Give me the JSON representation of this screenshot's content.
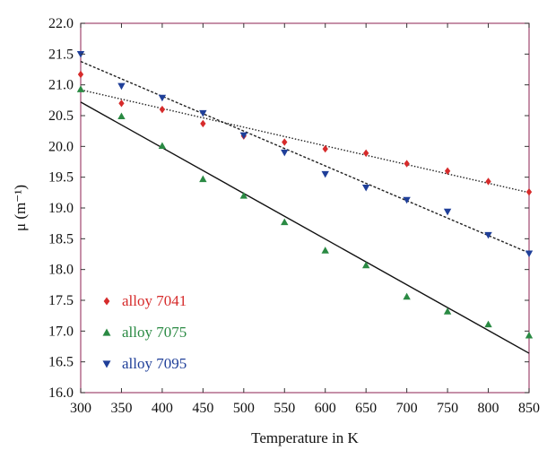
{
  "chart_data": {
    "type": "scatter",
    "xlabel": "Temperature in K",
    "ylabel": "μ (m⁻¹)",
    "xlim": [
      300,
      850
    ],
    "ylim": [
      16.0,
      22.0
    ],
    "xticks": [
      "300",
      "350",
      "400",
      "450",
      "500",
      "550",
      "600",
      "650",
      "700",
      "750",
      "800",
      "850"
    ],
    "yticks": [
      "16.0",
      "16.5",
      "17.0",
      "17.5",
      "18.0",
      "18.5",
      "19.0",
      "19.5",
      "20.0",
      "20.5",
      "21.0",
      "21.5",
      "22.0"
    ],
    "grid": false,
    "legend_position": "bottom-left",
    "x": [
      300,
      350,
      400,
      450,
      500,
      550,
      600,
      650,
      700,
      750,
      800,
      850
    ],
    "series": [
      {
        "name": "alloy 7041",
        "marker": "diamond",
        "color": "#d62b2b",
        "values": [
          21.17,
          20.7,
          20.6,
          20.37,
          20.17,
          20.07,
          19.96,
          19.89,
          19.72,
          19.6,
          19.43,
          19.26
        ],
        "fit": {
          "style": "dotted",
          "color": "#222222",
          "from": [
            300,
            20.92
          ],
          "to": [
            850,
            19.25
          ]
        }
      },
      {
        "name": "alloy 7075",
        "marker": "triangle-up",
        "color": "#2a8a43",
        "values": [
          20.93,
          20.49,
          20.01,
          19.47,
          19.2,
          18.77,
          18.31,
          18.07,
          17.56,
          17.32,
          17.11,
          16.93
        ],
        "fit": {
          "style": "solid",
          "color": "#111111",
          "from": [
            300,
            20.72
          ],
          "to": [
            850,
            16.64
          ]
        }
      },
      {
        "name": "alloy 7095",
        "marker": "triangle-down",
        "color": "#1f3f99",
        "values": [
          21.5,
          20.98,
          20.79,
          20.54,
          20.18,
          19.9,
          19.55,
          19.33,
          19.13,
          18.94,
          18.56,
          18.26
        ],
        "fit": {
          "style": "dashed",
          "color": "#222222",
          "from": [
            300,
            21.38
          ],
          "to": [
            850,
            18.27
          ]
        }
      }
    ]
  }
}
